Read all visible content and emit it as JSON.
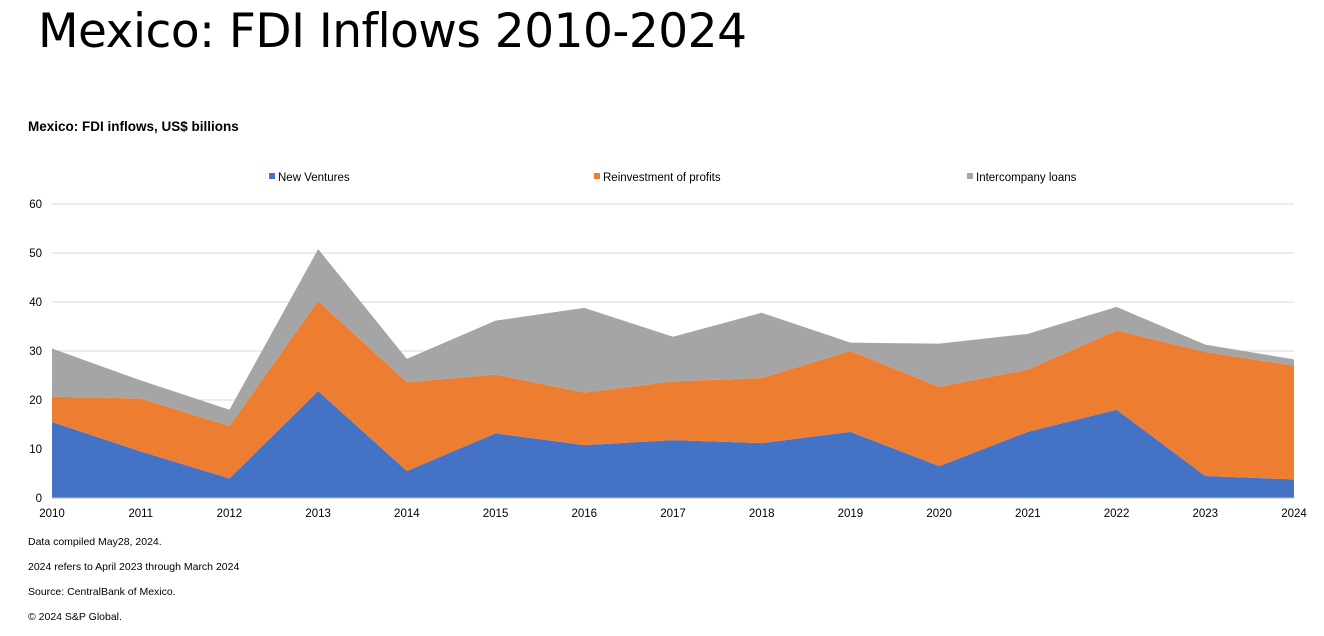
{
  "page": {
    "title": "Mexico: FDI Inflows 2010-2024"
  },
  "notes": [
    "Data compiled May28, 2024.",
    "2024 refers to April 2023 through March 2024",
    "Source: CentralBank of Mexico.",
    "© 2024 S&P Global."
  ],
  "chart_data": {
    "type": "area",
    "stacked": true,
    "title": "Mexico: FDI inflows, US$ billions",
    "xlabel": "",
    "ylabel": "",
    "x": [
      "2010",
      "2011",
      "2012",
      "2013",
      "2014",
      "2015",
      "2016",
      "2017",
      "2018",
      "2019",
      "2020",
      "2021",
      "2022",
      "2023",
      "2024"
    ],
    "ylim": [
      0,
      60
    ],
    "yticks": [
      0,
      10,
      20,
      30,
      40,
      50,
      60
    ],
    "grid": true,
    "legend_position": "top",
    "series": [
      {
        "name": "New Ventures",
        "color": "#4472C4",
        "values": [
          15.5,
          9.5,
          4.0,
          21.8,
          5.5,
          13.2,
          10.8,
          11.8,
          11.2,
          13.5,
          6.5,
          13.5,
          18.0,
          4.5,
          3.8
        ]
      },
      {
        "name": "Reinvestment of profits",
        "color": "#ED7D31",
        "values": [
          5.2,
          10.8,
          10.7,
          18.4,
          18.1,
          12.0,
          10.7,
          12.0,
          13.3,
          16.5,
          16.2,
          12.7,
          16.2,
          25.3,
          23.2
        ]
      },
      {
        "name": "Intercompany loans",
        "color": "#A5A5A5",
        "values": [
          9.8,
          3.7,
          3.3,
          10.6,
          4.8,
          11.0,
          17.3,
          9.1,
          13.3,
          1.7,
          8.8,
          7.3,
          4.8,
          1.5,
          1.3
        ]
      }
    ]
  }
}
